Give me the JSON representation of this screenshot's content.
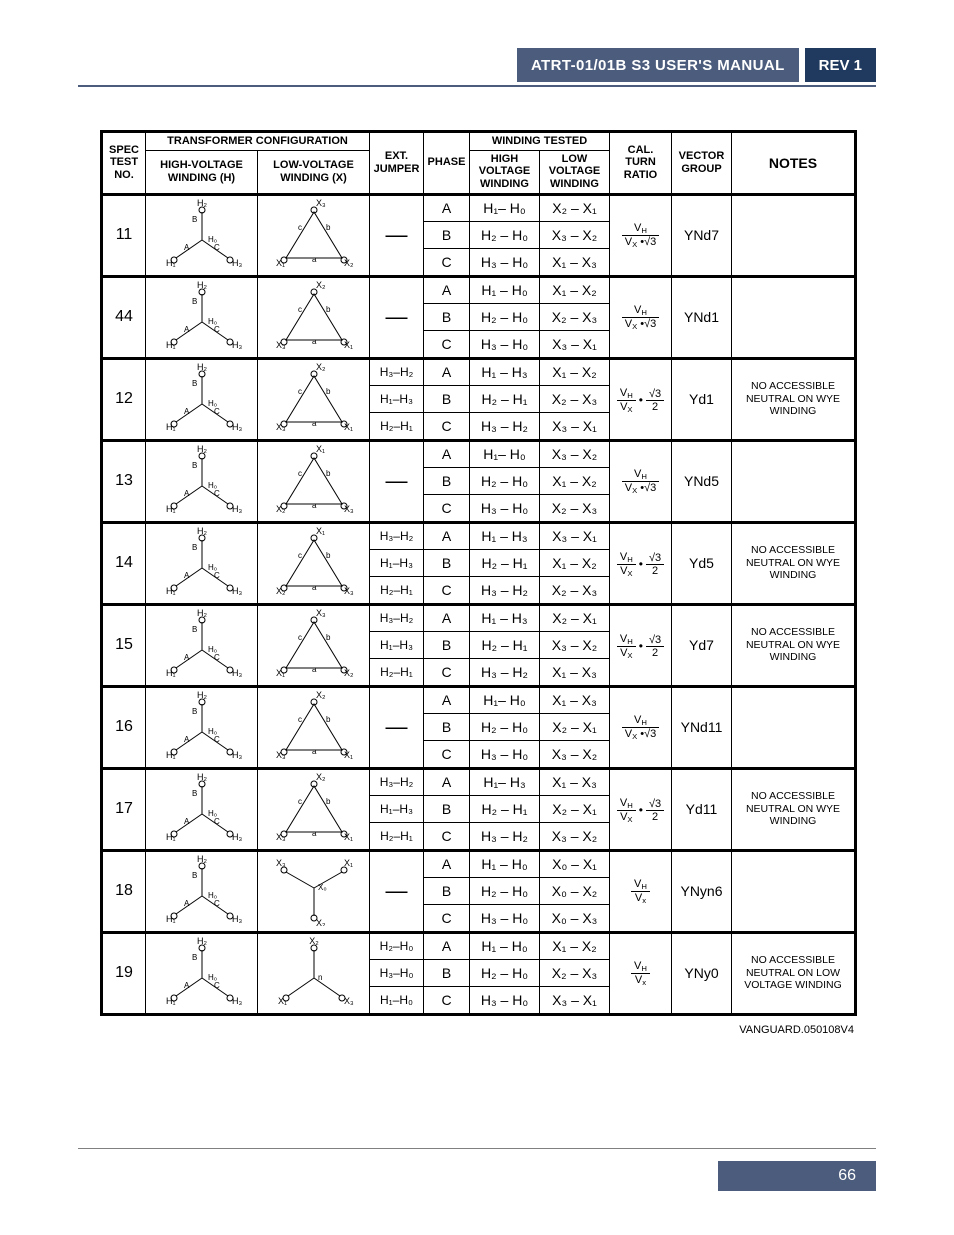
{
  "header": {
    "manual_title": "ATRT-01/01B S3 USER'S MANUAL",
    "rev": "REV 1"
  },
  "table_meta": {
    "top_group_transformer": "TRANSFORMER CONFIGURATION",
    "top_group_winding": "WINDING TESTED",
    "col_spec": "SPEC TEST NO.",
    "col_hv": "HIGH-VOLTAGE WINDING (H)",
    "col_lv": "LOW-VOLTAGE WINDING (X)",
    "col_ext": "EXT. JUMPER",
    "col_phase": "PHASE",
    "col_hvwind": "HIGH VOLTAGE WINDING",
    "col_lvwind": "LOW VOLTAGE WINDING",
    "col_cal": "CAL. TURN RATIO",
    "col_vec": "VECTOR GROUP",
    "col_notes": "NOTES"
  },
  "rows": [
    {
      "spec": "11",
      "ext": "—",
      "vec": "YNd7",
      "note": "",
      "cal_type": "vhvxsr3",
      "phases": [
        {
          "p": "A",
          "hv": "H₁– H₀",
          "lv": "X₂ – X₁"
        },
        {
          "p": "B",
          "hv": "H₂ – H₀",
          "lv": "X₃ – X₂"
        },
        {
          "p": "C",
          "hv": "H₃ – H₀",
          "lv": "X₁ – X₃"
        }
      ]
    },
    {
      "spec": "44",
      "ext": "—",
      "vec": "YNd1",
      "note": "",
      "cal_type": "vhvxsr3",
      "phases": [
        {
          "p": "A",
          "hv": "H₁ – H₀",
          "lv": "X₁ – X₂"
        },
        {
          "p": "B",
          "hv": "H₂ – H₀",
          "lv": "X₂ – X₃"
        },
        {
          "p": "C",
          "hv": "H₃ – H₀",
          "lv": "X₃ – X₁"
        }
      ]
    },
    {
      "spec": "12",
      "ext_rows": [
        "H₃–H₂",
        "H₁–H₃",
        "H₂–H₁"
      ],
      "vec": "Yd1",
      "note": "NO ACCESSIBLE NEUTRAL ON WYE WINDING",
      "cal_type": "vhvxsr3over2",
      "phases": [
        {
          "p": "A",
          "hv": "H₁ – H₃",
          "lv": "X₁ – X₂"
        },
        {
          "p": "B",
          "hv": "H₂ – H₁",
          "lv": "X₂ – X₃"
        },
        {
          "p": "C",
          "hv": "H₃ – H₂",
          "lv": "X₃ – X₁"
        }
      ]
    },
    {
      "spec": "13",
      "ext": "—",
      "vec": "YNd5",
      "note": "",
      "cal_type": "vhvxsr3",
      "phases": [
        {
          "p": "A",
          "hv": "H₁– H₀",
          "lv": "X₃ – X₂"
        },
        {
          "p": "B",
          "hv": "H₂ – H₀",
          "lv": "X₁ – X₂"
        },
        {
          "p": "C",
          "hv": "H₃ – H₀",
          "lv": "X₂ – X₃"
        }
      ]
    },
    {
      "spec": "14",
      "ext_rows": [
        "H₃–H₂",
        "H₁–H₃",
        "H₂–H₁"
      ],
      "vec": "Yd5",
      "note": "NO ACCESSIBLE NEUTRAL ON WYE WINDING",
      "cal_type": "vhvxsr3over2",
      "phases": [
        {
          "p": "A",
          "hv": "H₁ – H₃",
          "lv": "X₃ – X₁"
        },
        {
          "p": "B",
          "hv": "H₂ – H₁",
          "lv": "X₁ – X₂"
        },
        {
          "p": "C",
          "hv": "H₃ – H₂",
          "lv": "X₂ – X₃"
        }
      ]
    },
    {
      "spec": "15",
      "ext_rows": [
        "H₃–H₂",
        "H₁–H₃",
        "H₂–H₁"
      ],
      "vec": "Yd7",
      "note": "NO ACCESSIBLE NEUTRAL ON WYE WINDING",
      "cal_type": "vhvxsr3over2",
      "phases": [
        {
          "p": "A",
          "hv": "H₁ – H₃",
          "lv": "X₂ – X₁"
        },
        {
          "p": "B",
          "hv": "H₂ – H₁",
          "lv": "X₃ – X₂"
        },
        {
          "p": "C",
          "hv": "H₃ – H₂",
          "lv": "X₁ – X₃"
        }
      ]
    },
    {
      "spec": "16",
      "ext": "—",
      "vec": "YNd11",
      "note": "",
      "cal_type": "vhvxsr3",
      "phases": [
        {
          "p": "A",
          "hv": "H₁– H₀",
          "lv": "X₁ – X₃"
        },
        {
          "p": "B",
          "hv": "H₂ – H₀",
          "lv": "X₂ – X₁"
        },
        {
          "p": "C",
          "hv": "H₃ – H₀",
          "lv": "X₃ – X₂"
        }
      ]
    },
    {
      "spec": "17",
      "ext_rows": [
        "H₃–H₂",
        "H₁–H₃",
        "H₂–H₁"
      ],
      "vec": "Yd11",
      "note": "NO ACCESSIBLE NEUTRAL ON WYE WINDING",
      "cal_type": "vhvxsr3over2",
      "phases": [
        {
          "p": "A",
          "hv": "H₁– H₃",
          "lv": "X₁ – X₃"
        },
        {
          "p": "B",
          "hv": "H₂ – H₁",
          "lv": "X₂ – X₁"
        },
        {
          "p": "C",
          "hv": "H₃ – H₂",
          "lv": "X₃ – X₂"
        }
      ]
    },
    {
      "spec": "18",
      "ext": "—",
      "vec": "YNyn6",
      "note": "",
      "cal_type": "vhvx",
      "phases": [
        {
          "p": "A",
          "hv": "H₁ – H₀",
          "lv": "X₀ – X₁"
        },
        {
          "p": "B",
          "hv": "H₂ – H₀",
          "lv": "X₀ – X₂"
        },
        {
          "p": "C",
          "hv": "H₃ – H₀",
          "lv": "X₀ – X₃"
        }
      ]
    },
    {
      "spec": "19",
      "ext_rows": [
        "H₂–H₀",
        "H₃–H₀",
        "H₁–H₀"
      ],
      "vec": "YNy0",
      "note": "NO ACCESSIBLE NEUTRAL ON LOW VOLTAGE WINDING",
      "cal_type": "vhvx",
      "phases": [
        {
          "p": "A",
          "hv": "H₁ – H₀",
          "lv": "X₁ – X₂"
        },
        {
          "p": "B",
          "hv": "H₂ – H₀",
          "lv": "X₂ – X₃"
        },
        {
          "p": "C",
          "hv": "H₃ – H₀",
          "lv": "X₃ – X₁"
        }
      ]
    }
  ],
  "footer_id": "VANGUARD.050108V4",
  "page_number": "66",
  "colors": {
    "header_bg": "#4b5c7c",
    "rev_bg": "#1f3a5e",
    "border": "#000000"
  }
}
